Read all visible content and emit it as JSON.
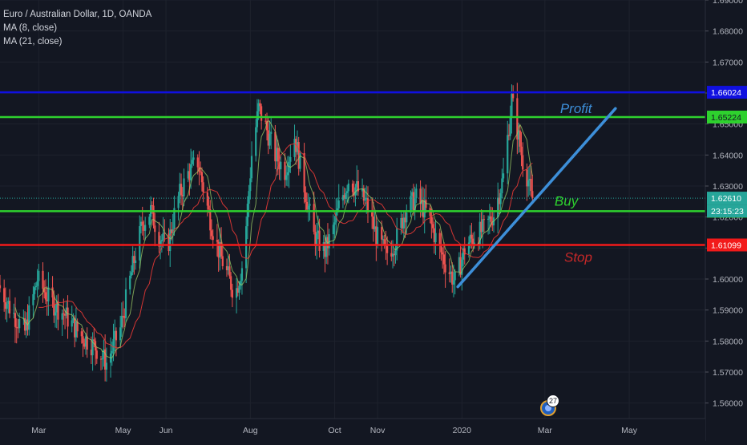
{
  "legend": {
    "title": "Euro / Australian Dollar, 1D, OANDA",
    "ma8": "MA (8, close)",
    "ma21": "MA (21, close)"
  },
  "badge_count": "27",
  "colors": {
    "background": "#131722",
    "grid": "#1e222d",
    "axis_text": "#b2b5be",
    "up": "#26a69a",
    "down": "#ef5350",
    "ma8": "#9ccc65",
    "ma21": "#e53935",
    "resistance": "#1010e0",
    "level_green": "#2ed12e",
    "stop": "#f21a1a",
    "trendline": "#3d8fd9",
    "profit_text": "#3d8fd9",
    "buy_text": "#2ed12e",
    "stop_text": "#c62828"
  },
  "chart_data": {
    "type": "candlestick",
    "symbol": "Euro / Australian Dollar",
    "timeframe": "1D",
    "source": "OANDA",
    "ylim": [
      1.555,
      1.69
    ],
    "y_ticks": [
      "1.69000",
      "1.68000",
      "1.67000",
      "1.66000",
      "1.65000",
      "1.64000",
      "1.63000",
      "1.62000",
      "1.61000",
      "1.60000",
      "1.59000",
      "1.58000",
      "1.57000",
      "1.56000"
    ],
    "x_ticks": [
      {
        "label": "Mar",
        "date": "2019-03-01"
      },
      {
        "label": "May",
        "date": "2019-05-01"
      },
      {
        "label": "Jun",
        "date": "2019-06-01"
      },
      {
        "label": "Aug",
        "date": "2019-08-01"
      },
      {
        "label": "Oct",
        "date": "2019-10-01"
      },
      {
        "label": "Nov",
        "date": "2019-11-01"
      },
      {
        "label": "2020",
        "date": "2020-01-01"
      },
      {
        "label": "Mar",
        "date": "2020-03-01"
      },
      {
        "label": "May",
        "date": "2020-05-01"
      }
    ],
    "x_range": [
      "2019-02-01",
      "2020-06-25"
    ],
    "price_path": [
      [
        "2019-02-01",
        1.598
      ],
      [
        "2019-02-10",
        1.59
      ],
      [
        "2019-02-20",
        1.583
      ],
      [
        "2019-03-01",
        1.6
      ],
      [
        "2019-03-10",
        1.593
      ],
      [
        "2019-03-20",
        1.589
      ],
      [
        "2019-04-01",
        1.582
      ],
      [
        "2019-04-12",
        1.578
      ],
      [
        "2019-04-20",
        1.573
      ],
      [
        "2019-04-30",
        1.584
      ],
      [
        "2019-05-08",
        1.602
      ],
      [
        "2019-05-16",
        1.618
      ],
      [
        "2019-05-22",
        1.622
      ],
      [
        "2019-05-28",
        1.614
      ],
      [
        "2019-06-03",
        1.61
      ],
      [
        "2019-06-10",
        1.625
      ],
      [
        "2019-06-18",
        1.634
      ],
      [
        "2019-06-25",
        1.638
      ],
      [
        "2019-07-01",
        1.625
      ],
      [
        "2019-07-08",
        1.612
      ],
      [
        "2019-07-15",
        1.603
      ],
      [
        "2019-07-22",
        1.595
      ],
      [
        "2019-07-28",
        1.606
      ],
      [
        "2019-08-03",
        1.64
      ],
      [
        "2019-08-08",
        1.655
      ],
      [
        "2019-08-14",
        1.648
      ],
      [
        "2019-08-20",
        1.64
      ],
      [
        "2019-08-27",
        1.635
      ],
      [
        "2019-09-03",
        1.646
      ],
      [
        "2019-09-10",
        1.63
      ],
      [
        "2019-09-17",
        1.614
      ],
      [
        "2019-09-25",
        1.609
      ],
      [
        "2019-10-01",
        1.616
      ],
      [
        "2019-10-06",
        1.625
      ],
      [
        "2019-10-12",
        1.632
      ],
      [
        "2019-10-18",
        1.629
      ],
      [
        "2019-10-25",
        1.624
      ],
      [
        "2019-11-01",
        1.614
      ],
      [
        "2019-11-08",
        1.608
      ],
      [
        "2019-11-15",
        1.612
      ],
      [
        "2019-11-22",
        1.622
      ],
      [
        "2019-11-30",
        1.626
      ],
      [
        "2019-12-08",
        1.621
      ],
      [
        "2019-12-15",
        1.612
      ],
      [
        "2019-12-22",
        1.604
      ],
      [
        "2019-12-28",
        1.599
      ],
      [
        "2020-01-05",
        1.611
      ],
      [
        "2020-01-12",
        1.614
      ],
      [
        "2020-01-18",
        1.616
      ],
      [
        "2020-01-25",
        1.621
      ],
      [
        "2020-02-01",
        1.633
      ],
      [
        "2020-02-07",
        1.658
      ],
      [
        "2020-02-11",
        1.648
      ],
      [
        "2020-02-15",
        1.638
      ],
      [
        "2020-02-19",
        1.632
      ],
      [
        "2020-02-21",
        1.6261
      ]
    ],
    "levels": [
      {
        "name": "resistance-level",
        "price": 1.66024,
        "label": "1.66024",
        "color": "#1010e0"
      },
      {
        "name": "profit-level",
        "price": 1.65224,
        "label": "1.65224",
        "color": "#2ed12e"
      },
      {
        "name": "buy-level",
        "price": 1.62187,
        "label": "1.62187",
        "color": "#2ed12e"
      },
      {
        "name": "stop-level",
        "price": 1.61099,
        "label": "1.61099",
        "color": "#f21a1a"
      }
    ],
    "last_price": {
      "price": 1.6261,
      "label": "1.62610",
      "countdown": "23:15:23"
    },
    "annotations": [
      {
        "name": "profit-annotation",
        "text": "Profit",
        "date": "2020-03-12",
        "price": 1.6535
      },
      {
        "name": "buy-annotation",
        "text": "Buy",
        "date": "2020-03-08",
        "price": 1.6236
      },
      {
        "name": "stop-annotation",
        "text": "Stop",
        "date": "2020-03-15",
        "price": 1.6055
      }
    ],
    "trendline": {
      "start": [
        "2019-12-29",
        1.5975
      ],
      "end": [
        "2020-04-21",
        1.655
      ]
    },
    "ma_periods": [
      8,
      21
    ]
  }
}
